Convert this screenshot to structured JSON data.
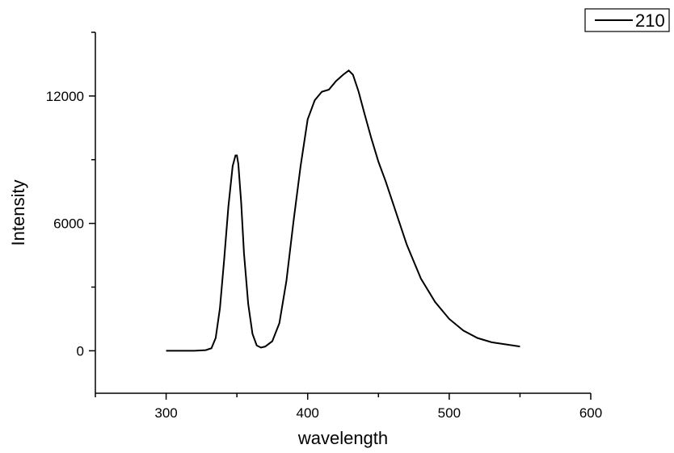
{
  "chart_data": {
    "type": "line",
    "title": "",
    "xlabel": "wavelength",
    "ylabel": "Intensity",
    "xlim": [
      250,
      600
    ],
    "ylim": [
      -2000,
      15000
    ],
    "x_ticks": [
      300,
      400,
      500,
      600
    ],
    "x_tick_labels": [
      "300",
      "400",
      "500",
      "600"
    ],
    "y_ticks": [
      0,
      6000,
      12000
    ],
    "y_tick_labels": [
      "0",
      "6000",
      "12000"
    ],
    "grid": false,
    "legend_position": "top-right",
    "series": [
      {
        "name": "210",
        "color": "#000000",
        "x": [
          300,
          320,
          328,
          332,
          335,
          338,
          341,
          344,
          347,
          349,
          350,
          351,
          353,
          355,
          358,
          361,
          364,
          367,
          370,
          375,
          380,
          385,
          390,
          395,
          400,
          405,
          410,
          415,
          420,
          425,
          429,
          432,
          436,
          440,
          445,
          450,
          455,
          460,
          465,
          470,
          475,
          480,
          490,
          500,
          510,
          520,
          530,
          540,
          550
        ],
        "y": [
          0,
          0,
          30,
          120,
          600,
          2000,
          4300,
          6800,
          8700,
          9200,
          9200,
          8800,
          7000,
          4600,
          2200,
          800,
          250,
          150,
          200,
          450,
          1300,
          3300,
          6100,
          8700,
          10900,
          11800,
          12200,
          12300,
          12700,
          13000,
          13200,
          13000,
          12200,
          11200,
          10000,
          8900,
          8000,
          7000,
          6000,
          5000,
          4200,
          3400,
          2300,
          1500,
          950,
          600,
          400,
          300,
          200
        ]
      }
    ]
  }
}
